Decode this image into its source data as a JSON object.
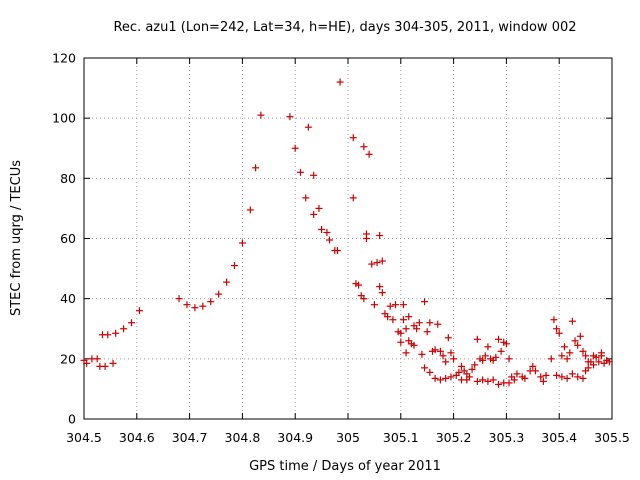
{
  "chart_data": {
    "type": "scatter",
    "title": "Rec. azu1 (Lon=242, Lat=34, h=HE), days 304-305, 2011, window 002",
    "xlabel": "GPS time / Days of year 2011",
    "ylabel": "STEC from uqrg / TECUs",
    "xlim": [
      304.5,
      305.5
    ],
    "ylim": [
      0,
      120
    ],
    "x_ticks": [
      "304.5",
      "304.6",
      "304.7",
      "304.8",
      "304.9",
      "305",
      "305.1",
      "305.2",
      "305.3",
      "305.4",
      "305.5"
    ],
    "y_ticks": [
      "0",
      "20",
      "40",
      "60",
      "80",
      "100",
      "120"
    ],
    "grid": true,
    "marker": "plus",
    "marker_color": "#cc0000",
    "points": [
      [
        304.5,
        19.5
      ],
      [
        304.505,
        18.5
      ],
      [
        304.515,
        20
      ],
      [
        304.525,
        20
      ],
      [
        304.53,
        17.5
      ],
      [
        304.54,
        17.5
      ],
      [
        304.535,
        28
      ],
      [
        304.545,
        28
      ],
      [
        304.555,
        18.5
      ],
      [
        304.56,
        28.5
      ],
      [
        304.575,
        30
      ],
      [
        304.59,
        32
      ],
      [
        304.605,
        36
      ],
      [
        304.68,
        40
      ],
      [
        304.695,
        38
      ],
      [
        304.71,
        37
      ],
      [
        304.725,
        37.5
      ],
      [
        304.74,
        39
      ],
      [
        304.755,
        41.5
      ],
      [
        304.77,
        45.5
      ],
      [
        304.785,
        51
      ],
      [
        304.8,
        58.5
      ],
      [
        304.815,
        69.5
      ],
      [
        304.825,
        83.5
      ],
      [
        304.835,
        101
      ],
      [
        304.89,
        100.5
      ],
      [
        304.9,
        90
      ],
      [
        304.91,
        82
      ],
      [
        304.92,
        73.5
      ],
      [
        304.925,
        97
      ],
      [
        304.935,
        81
      ],
      [
        304.935,
        68
      ],
      [
        304.945,
        70
      ],
      [
        304.95,
        63
      ],
      [
        304.96,
        62
      ],
      [
        304.965,
        59.5
      ],
      [
        304.975,
        56
      ],
      [
        304.98,
        56
      ],
      [
        304.985,
        112
      ],
      [
        305.01,
        93.5
      ],
      [
        305.01,
        73.5
      ],
      [
        305.015,
        45
      ],
      [
        305.02,
        44.5
      ],
      [
        305.025,
        41
      ],
      [
        305.03,
        40
      ],
      [
        305.03,
        90.5
      ],
      [
        305.04,
        88
      ],
      [
        305.035,
        61.5
      ],
      [
        305.035,
        60
      ],
      [
        305.045,
        51.5
      ],
      [
        305.055,
        52
      ],
      [
        305.06,
        61
      ],
      [
        305.06,
        44
      ],
      [
        305.065,
        52.5
      ],
      [
        305.05,
        38
      ],
      [
        305.065,
        42
      ],
      [
        305.07,
        35
      ],
      [
        305.075,
        34
      ],
      [
        305.08,
        37.5
      ],
      [
        305.085,
        33
      ],
      [
        305.09,
        38
      ],
      [
        305.095,
        29
      ],
      [
        305.1,
        28.5
      ],
      [
        305.105,
        38
      ],
      [
        305.105,
        33
      ],
      [
        305.11,
        30
      ],
      [
        305.115,
        26
      ],
      [
        305.12,
        25
      ],
      [
        305.125,
        24.5
      ],
      [
        305.1,
        25.5
      ],
      [
        305.11,
        22
      ],
      [
        305.115,
        34
      ],
      [
        305.125,
        31
      ],
      [
        305.13,
        30
      ],
      [
        305.135,
        32
      ],
      [
        305.14,
        21.5
      ],
      [
        305.145,
        39
      ],
      [
        305.15,
        29
      ],
      [
        305.155,
        32
      ],
      [
        305.16,
        22.5
      ],
      [
        305.165,
        23
      ],
      [
        305.17,
        31.5
      ],
      [
        305.175,
        22.5
      ],
      [
        305.18,
        21
      ],
      [
        305.185,
        19
      ],
      [
        305.19,
        27
      ],
      [
        305.195,
        22
      ],
      [
        305.2,
        20
      ],
      [
        305.145,
        17
      ],
      [
        305.155,
        15.5
      ],
      [
        305.165,
        13.5
      ],
      [
        305.175,
        13
      ],
      [
        305.185,
        13.5
      ],
      [
        305.195,
        14
      ],
      [
        305.205,
        14.5
      ],
      [
        305.21,
        15.5
      ],
      [
        305.215,
        17.5
      ],
      [
        305.22,
        16
      ],
      [
        305.225,
        15
      ],
      [
        305.23,
        14
      ],
      [
        305.235,
        16.5
      ],
      [
        305.24,
        18
      ],
      [
        305.245,
        26.5
      ],
      [
        305.25,
        20
      ],
      [
        305.255,
        19.5
      ],
      [
        305.26,
        21
      ],
      [
        305.265,
        24
      ],
      [
        305.27,
        20
      ],
      [
        305.275,
        19.5
      ],
      [
        305.28,
        20.5
      ],
      [
        305.285,
        26.5
      ],
      [
        305.29,
        22.5
      ],
      [
        305.295,
        25.5
      ],
      [
        305.3,
        25
      ],
      [
        305.305,
        20
      ],
      [
        305.31,
        14
      ],
      [
        305.215,
        13
      ],
      [
        305.225,
        13
      ],
      [
        305.245,
        12.5
      ],
      [
        305.255,
        13
      ],
      [
        305.265,
        12.5
      ],
      [
        305.275,
        13
      ],
      [
        305.285,
        11.5
      ],
      [
        305.295,
        12
      ],
      [
        305.305,
        12
      ],
      [
        305.315,
        13
      ],
      [
        305.32,
        15
      ],
      [
        305.33,
        14
      ],
      [
        305.335,
        13.5
      ],
      [
        305.345,
        16
      ],
      [
        305.35,
        17.5
      ],
      [
        305.355,
        16
      ],
      [
        305.365,
        14
      ],
      [
        305.37,
        12.5
      ],
      [
        305.375,
        14.5
      ],
      [
        305.385,
        20
      ],
      [
        305.39,
        33
      ],
      [
        305.395,
        30
      ],
      [
        305.4,
        28.5
      ],
      [
        305.405,
        21
      ],
      [
        305.41,
        24
      ],
      [
        305.415,
        20
      ],
      [
        305.42,
        22
      ],
      [
        305.425,
        32.5
      ],
      [
        305.43,
        26
      ],
      [
        305.435,
        24.5
      ],
      [
        305.44,
        27.5
      ],
      [
        305.445,
        22.5
      ],
      [
        305.45,
        21
      ],
      [
        305.455,
        19
      ],
      [
        305.46,
        19
      ],
      [
        305.465,
        21
      ],
      [
        305.47,
        20.5
      ],
      [
        305.475,
        19
      ],
      [
        305.48,
        22
      ],
      [
        305.485,
        18.5
      ],
      [
        305.49,
        19.5
      ],
      [
        305.395,
        14.5
      ],
      [
        305.405,
        14
      ],
      [
        305.415,
        13.5
      ],
      [
        305.425,
        15
      ],
      [
        305.435,
        14
      ],
      [
        305.445,
        13.5
      ],
      [
        305.45,
        16
      ],
      [
        305.455,
        17
      ],
      [
        305.465,
        18
      ],
      [
        305.48,
        21
      ],
      [
        305.495,
        19
      ]
    ]
  }
}
